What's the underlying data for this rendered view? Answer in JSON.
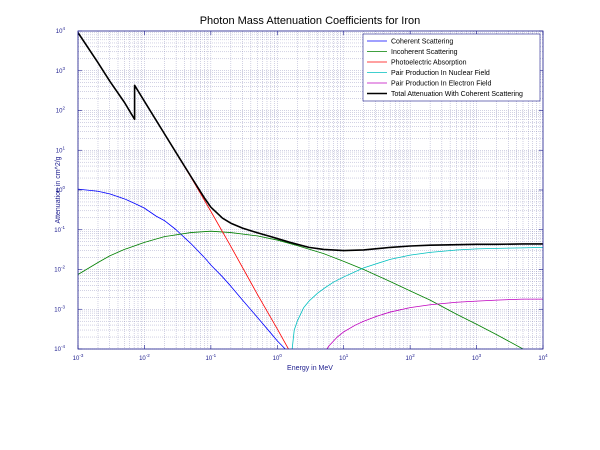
{
  "chart_data": {
    "type": "line",
    "title": "Photon Mass Attenuation Coefficients for Iron",
    "xlabel": "Energy in MeV",
    "ylabel": "Attenuation in cm^2/g",
    "x_scale": "log",
    "y_scale": "log",
    "xlim": [
      0.001,
      10000
    ],
    "ylim": [
      0.0001,
      10000
    ],
    "x_ticks": [
      {
        "value": 0.001,
        "base": "10",
        "exp": "-3"
      },
      {
        "value": 0.01,
        "base": "10",
        "exp": "-2"
      },
      {
        "value": 0.1,
        "base": "10",
        "exp": "-1"
      },
      {
        "value": 1,
        "base": "10",
        "exp": "0"
      },
      {
        "value": 10,
        "base": "10",
        "exp": "1"
      },
      {
        "value": 100,
        "base": "10",
        "exp": "2"
      },
      {
        "value": 1000,
        "base": "10",
        "exp": "3"
      },
      {
        "value": 10000,
        "base": "10",
        "exp": "4"
      }
    ],
    "y_ticks": [
      {
        "value": 0.0001,
        "base": "10",
        "exp": "-4"
      },
      {
        "value": 0.001,
        "base": "10",
        "exp": "-3"
      },
      {
        "value": 0.01,
        "base": "10",
        "exp": "-2"
      },
      {
        "value": 0.1,
        "base": "10",
        "exp": "-1"
      },
      {
        "value": 1,
        "base": "10",
        "exp": "0"
      },
      {
        "value": 10,
        "base": "10",
        "exp": "1"
      },
      {
        "value": 100,
        "base": "10",
        "exp": "2"
      },
      {
        "value": 1000,
        "base": "10",
        "exp": "3"
      },
      {
        "value": 10000,
        "base": "10",
        "exp": "4"
      }
    ],
    "grid": true,
    "minor_grid": true,
    "legend_position": "top-right",
    "series": [
      {
        "name": "Coherent Scattering",
        "color": "#0000ff",
        "width": 0.8,
        "x": [
          0.001,
          0.002,
          0.003,
          0.005,
          0.008,
          0.01,
          0.015,
          0.02,
          0.03,
          0.05,
          0.08,
          0.1,
          0.15,
          0.2,
          0.3,
          0.5,
          0.8,
          1,
          1.5,
          2
        ],
        "y": [
          1.05,
          0.93,
          0.8,
          0.6,
          0.42,
          0.35,
          0.22,
          0.17,
          0.1,
          0.045,
          0.02,
          0.013,
          0.0065,
          0.0038,
          0.0017,
          0.00063,
          0.00025,
          0.00016,
          8e-05,
          5e-05
        ]
      },
      {
        "name": "Incoherent Scattering",
        "color": "#008000",
        "width": 0.8,
        "x": [
          0.001,
          0.002,
          0.003,
          0.005,
          0.01,
          0.02,
          0.05,
          0.1,
          0.2,
          0.5,
          1,
          2,
          5,
          10,
          20,
          50,
          100,
          200,
          500,
          1000,
          2000,
          5000,
          10000
        ],
        "y": [
          0.0075,
          0.015,
          0.022,
          0.032,
          0.048,
          0.067,
          0.085,
          0.092,
          0.085,
          0.07,
          0.055,
          0.04,
          0.025,
          0.016,
          0.01,
          0.005,
          0.0029,
          0.0017,
          0.00075,
          0.00042,
          0.00023,
          0.0001,
          5e-05
        ]
      },
      {
        "name": "Photoelectric Absorption",
        "color": "#ff0000",
        "width": 0.8,
        "x": [
          0.001,
          0.002,
          0.003,
          0.005,
          0.00711,
          0.00711,
          0.01,
          0.02,
          0.03,
          0.05,
          0.08,
          0.1,
          0.2,
          0.5,
          1,
          2
        ],
        "y": [
          9000,
          1600,
          550,
          160,
          60,
          430,
          170,
          26,
          8.5,
          2.1,
          0.55,
          0.29,
          0.038,
          0.0024,
          0.00032,
          4e-05
        ]
      },
      {
        "name": "Pair Production In Nuclear Field",
        "color": "#00bfbf",
        "width": 0.8,
        "x": [
          1.6,
          1.8,
          2,
          2.5,
          3,
          4,
          5,
          7,
          10,
          20,
          50,
          100,
          200,
          500,
          1000,
          2000,
          5000,
          10000
        ],
        "y": [
          5e-05,
          0.0003,
          0.0005,
          0.0011,
          0.0016,
          0.0025,
          0.0033,
          0.0048,
          0.0065,
          0.011,
          0.018,
          0.023,
          0.027,
          0.031,
          0.033,
          0.034,
          0.035,
          0.036
        ]
      },
      {
        "name": "Pair Production In Electron Field",
        "color": "#bf00bf",
        "width": 0.8,
        "x": [
          4.6,
          5,
          6,
          8,
          10,
          15,
          20,
          30,
          50,
          100,
          200,
          500,
          1000,
          2000,
          5000,
          10000
        ],
        "y": [
          5e-05,
          7.5e-05,
          0.00012,
          0.0002,
          0.00027,
          0.0004,
          0.0005,
          0.00065,
          0.00085,
          0.0011,
          0.0013,
          0.0015,
          0.0016,
          0.0017,
          0.0018,
          0.0018
        ]
      },
      {
        "name": "Total Attenuation With Coherent Scattering",
        "color": "#000000",
        "width": 1.6,
        "x": [
          0.001,
          0.002,
          0.003,
          0.005,
          0.00711,
          0.00711,
          0.01,
          0.02,
          0.03,
          0.05,
          0.08,
          0.1,
          0.15,
          0.2,
          0.3,
          0.5,
          0.8,
          1,
          1.5,
          2,
          3,
          5,
          10,
          20,
          50,
          100,
          200,
          500,
          1000,
          2000,
          5000,
          10000
        ],
        "y": [
          9100,
          1600,
          550,
          160,
          60,
          430,
          170,
          26,
          8.7,
          2.2,
          0.63,
          0.37,
          0.195,
          0.146,
          0.11,
          0.084,
          0.067,
          0.06,
          0.049,
          0.043,
          0.036,
          0.032,
          0.03,
          0.031,
          0.036,
          0.039,
          0.041,
          0.042,
          0.043,
          0.043,
          0.044,
          0.044
        ]
      }
    ]
  }
}
